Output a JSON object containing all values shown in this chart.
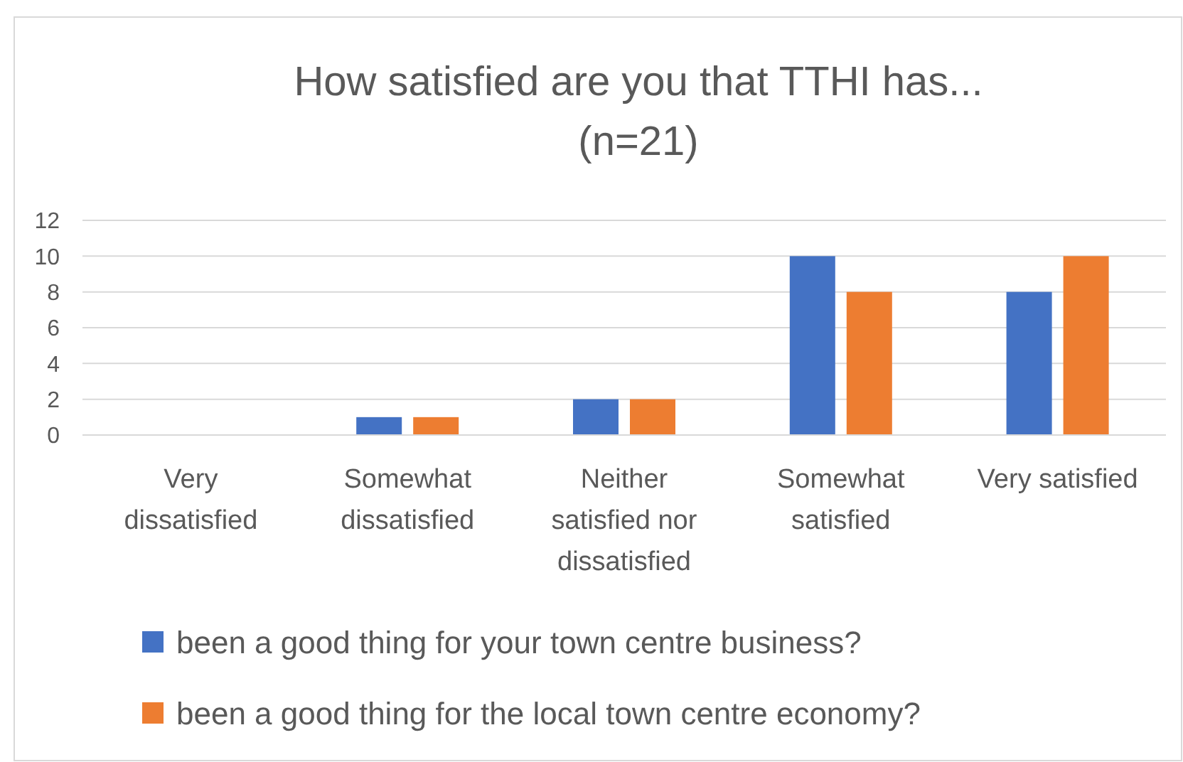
{
  "chart_data": {
    "type": "bar",
    "title": "How satisfied are you that TTHI has...\n(n=21)",
    "categories": [
      "Very dissatisfied",
      "Somewhat dissatisfied",
      "Neither satisfied nor dissatisfied",
      "Somewhat satisfied",
      "Very satisfied"
    ],
    "series": [
      {
        "name": "been a good thing for your town centre business?",
        "color": "#4472c4",
        "values": [
          0,
          1,
          2,
          10,
          8
        ]
      },
      {
        "name": "been a good thing for the local town centre economy?",
        "color": "#ed7d31",
        "values": [
          0,
          1,
          2,
          8,
          10
        ]
      }
    ],
    "ylim": [
      0,
      12
    ],
    "yticks": [
      0,
      2,
      4,
      6,
      8,
      10,
      12
    ],
    "grid": "y",
    "legend": "bottom"
  }
}
